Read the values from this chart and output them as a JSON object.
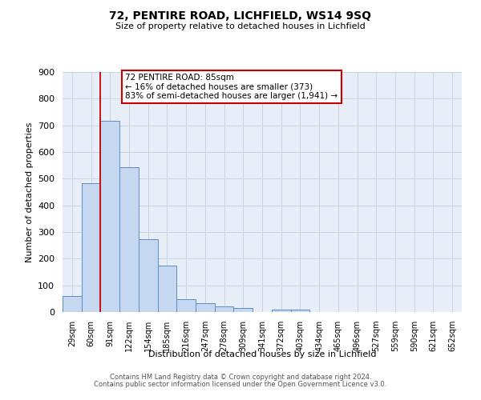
{
  "title": "72, PENTIRE ROAD, LICHFIELD, WS14 9SQ",
  "subtitle": "Size of property relative to detached houses in Lichfield",
  "xlabel": "Distribution of detached houses by size in Lichfield",
  "ylabel": "Number of detached properties",
  "categories": [
    "29sqm",
    "60sqm",
    "91sqm",
    "122sqm",
    "154sqm",
    "185sqm",
    "216sqm",
    "247sqm",
    "278sqm",
    "309sqm",
    "341sqm",
    "372sqm",
    "403sqm",
    "434sqm",
    "465sqm",
    "496sqm",
    "527sqm",
    "559sqm",
    "590sqm",
    "621sqm",
    "652sqm"
  ],
  "values": [
    60,
    482,
    717,
    543,
    272,
    175,
    47,
    33,
    20,
    15,
    0,
    8,
    8,
    0,
    0,
    0,
    0,
    0,
    0,
    0,
    0
  ],
  "bar_color": "#c5d8ef",
  "bar_edge_color": "#5b8dc8",
  "grid_color": "#c8d4e4",
  "background_color": "#e8eef8",
  "vline_color": "#cc0000",
  "vline_x_index": 1.5,
  "annotation_text": "72 PENTIRE ROAD: 85sqm\n← 16% of detached houses are smaller (373)\n83% of semi-detached houses are larger (1,941) →",
  "annotation_box_color": "#ffffff",
  "annotation_box_edge": "#cc0000",
  "ylim": [
    0,
    900
  ],
  "yticks": [
    0,
    100,
    200,
    300,
    400,
    500,
    600,
    700,
    800,
    900
  ],
  "footer1": "Contains HM Land Registry data © Crown copyright and database right 2024.",
  "footer2": "Contains public sector information licensed under the Open Government Licence v3.0."
}
